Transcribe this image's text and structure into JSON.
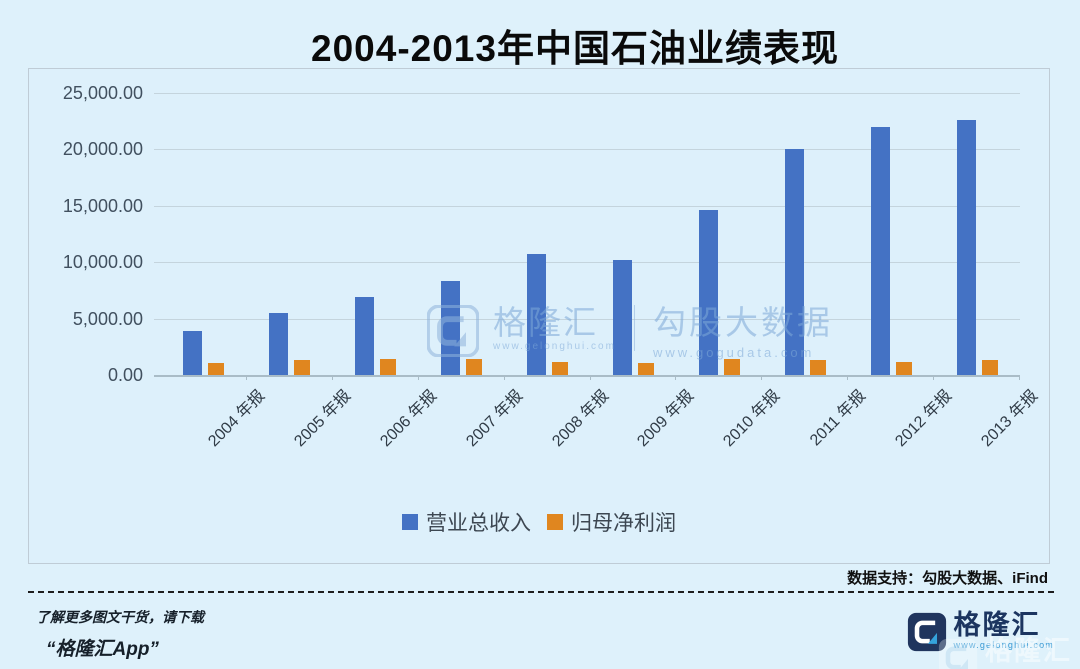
{
  "title": "2004-2013年中国石油业绩表现",
  "chart_data": {
    "type": "bar",
    "categories": [
      "2004 年报",
      "2005 年报",
      "2006 年报",
      "2007 年报",
      "2008 年报",
      "2009 年报",
      "2010 年报",
      "2011 年报",
      "2012 年报",
      "2013 年报"
    ],
    "series": [
      {
        "name": "营业总收入",
        "color": "#4472c4",
        "values": [
          3886,
          5522,
          6890,
          8350,
          10713,
          10193,
          14654,
          20038,
          21953,
          22583
        ]
      },
      {
        "name": "归母净利润",
        "color": "#e0861f",
        "values": [
          1029,
          1334,
          1422,
          1456,
          1144,
          1033,
          1399,
          1330,
          1153,
          1296
        ]
      }
    ],
    "ylim": [
      0,
      25000
    ],
    "ytick_step": 5000,
    "ytick_labels": [
      "0.00",
      "5,000.00",
      "10,000.00",
      "15,000.00",
      "20,000.00",
      "25,000.00"
    ],
    "grid": true,
    "legend_position": "bottom"
  },
  "watermark_center": {
    "brand": "格隆汇",
    "brand_url": "www.gelonghui.com",
    "product": "勾股大数据",
    "product_url": "www.gogudata.com"
  },
  "footer": {
    "data_support": "数据支持：勾股大数据、iFind",
    "promo_line1": "了解更多图文干货，请下载",
    "promo_line2": "“格隆汇App”",
    "brand": "格隆汇",
    "brand_url": "www.gelonghui.com"
  }
}
